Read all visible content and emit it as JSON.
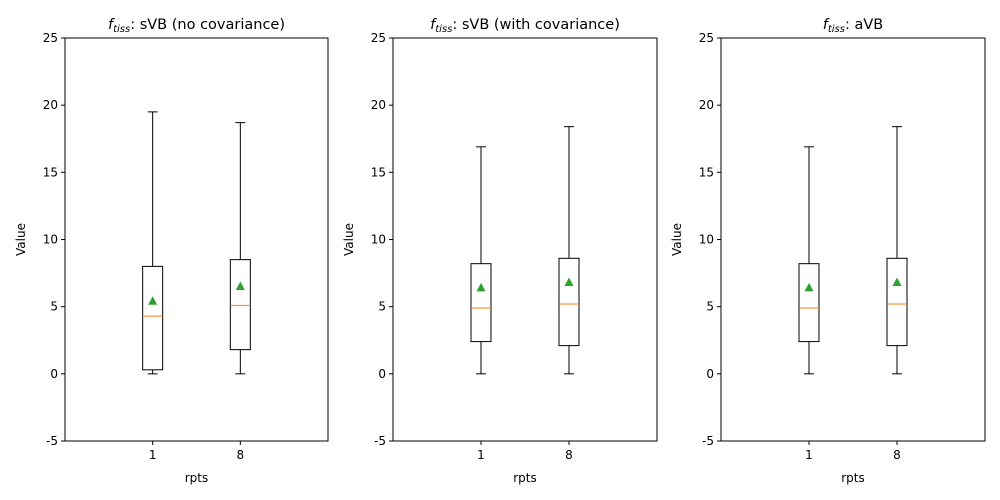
{
  "chart_data": [
    {
      "type": "box",
      "title": {
        "symbol": "f",
        "subscript": "tiss",
        "text": ": sVB (no covariance)"
      },
      "xlabel": "rpts",
      "ylabel": "Value",
      "ylim": [
        -5,
        25
      ],
      "yticks": [
        -5,
        0,
        5,
        10,
        15,
        20,
        25
      ],
      "categories": [
        "1",
        "8"
      ],
      "boxes": [
        {
          "category": "1",
          "whisker_low": 0.0,
          "q1": 0.3,
          "median": 4.3,
          "q3": 8.0,
          "whisker_high": 19.5,
          "mean": 5.4
        },
        {
          "category": "8",
          "whisker_low": 0.0,
          "q1": 1.8,
          "median": 5.1,
          "q3": 8.5,
          "whisker_high": 18.7,
          "mean": 6.5
        }
      ]
    },
    {
      "type": "box",
      "title": {
        "symbol": "f",
        "subscript": "tiss",
        "text": ": sVB (with covariance)"
      },
      "xlabel": "rpts",
      "ylabel": "Value",
      "ylim": [
        -5,
        25
      ],
      "yticks": [
        -5,
        0,
        5,
        10,
        15,
        20,
        25
      ],
      "categories": [
        "1",
        "8"
      ],
      "boxes": [
        {
          "category": "1",
          "whisker_low": 0.0,
          "q1": 2.4,
          "median": 4.9,
          "q3": 8.2,
          "whisker_high": 16.9,
          "mean": 6.4
        },
        {
          "category": "8",
          "whisker_low": 0.0,
          "q1": 2.1,
          "median": 5.2,
          "q3": 8.6,
          "whisker_high": 18.4,
          "mean": 6.8
        }
      ]
    },
    {
      "type": "box",
      "title": {
        "symbol": "f",
        "subscript": "tiss",
        "text": ": aVB"
      },
      "xlabel": "rpts",
      "ylabel": "Value",
      "ylim": [
        -5,
        25
      ],
      "yticks": [
        -5,
        0,
        5,
        10,
        15,
        20,
        25
      ],
      "categories": [
        "1",
        "8"
      ],
      "boxes": [
        {
          "category": "1",
          "whisker_low": 0.0,
          "q1": 2.4,
          "median": 4.9,
          "q3": 8.2,
          "whisker_high": 16.9,
          "mean": 6.4
        },
        {
          "category": "8",
          "whisker_low": 0.0,
          "q1": 2.1,
          "median": 5.2,
          "q3": 8.6,
          "whisker_high": 18.4,
          "mean": 6.8
        }
      ]
    }
  ],
  "colors": {
    "median": "#ff7f0e",
    "mean": "#2ca02c",
    "box": "#000000"
  }
}
